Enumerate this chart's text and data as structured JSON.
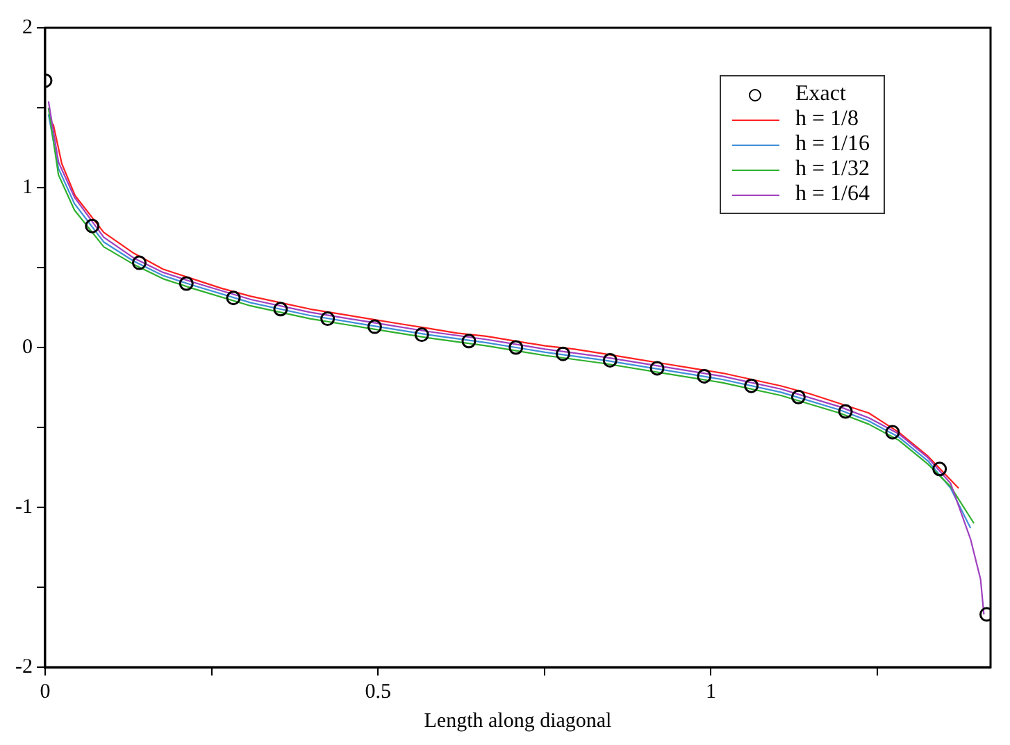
{
  "chart_data": {
    "type": "line",
    "xlabel": "Length along diagonal",
    "xlim": [
      0,
      1.42
    ],
    "ylim": [
      -2,
      2
    ],
    "xticks": [
      0,
      {
        "value": 0.25,
        "label": null
      },
      0.5,
      {
        "value": 0.75,
        "label": null
      },
      1,
      {
        "value": 1.25,
        "label": null
      }
    ],
    "yticks": [
      -2,
      {
        "value": -1.5,
        "label": null
      },
      -1,
      {
        "value": -0.5,
        "label": null
      },
      0,
      {
        "value": 0.5,
        "label": null
      },
      1,
      {
        "value": 1.5,
        "label": null
      },
      2
    ],
    "grid": false,
    "legend": "top right",
    "line_style": "solid",
    "marker": "none",
    "series": [
      {
        "name": "Exact",
        "type": "scatter",
        "marker": "circle",
        "color": "#000000",
        "x": [
          0,
          0.0707,
          0.1414,
          0.2121,
          0.2828,
          0.3536,
          0.4243,
          0.495,
          0.5657,
          0.6364,
          0.7071,
          0.7778,
          0.8485,
          0.9192,
          0.9899,
          1.0607,
          1.1314,
          1.2021,
          1.2728,
          1.3435,
          1.4142
        ],
        "values": [
          1.67,
          0.76,
          0.53,
          0.4,
          0.31,
          0.24,
          0.18,
          0.13,
          0.08,
          0.04,
          0,
          -0.04,
          -0.08,
          -0.13,
          -0.18,
          -0.24,
          -0.31,
          -0.4,
          -0.53,
          -0.76,
          -1.67
        ]
      },
      {
        "name": "h = 1/8",
        "color": "#ff2020",
        "x": [
          0.012,
          0.025,
          0.045,
          0.088,
          0.133,
          0.177,
          0.221,
          0.265,
          0.309,
          0.354,
          0.398,
          0.442,
          0.486,
          0.53,
          0.575,
          0.619,
          0.663,
          0.707,
          0.751,
          0.795,
          0.84,
          0.884,
          0.928,
          0.972,
          1.017,
          1.061,
          1.105,
          1.149,
          1.193,
          1.237,
          1.282,
          1.326,
          1.372
        ],
        "values": [
          1.4,
          1.15,
          0.95,
          0.72,
          0.59,
          0.49,
          0.43,
          0.37,
          0.32,
          0.28,
          0.24,
          0.21,
          0.18,
          0.15,
          0.12,
          0.09,
          0.07,
          0.04,
          0.01,
          -0.01,
          -0.04,
          -0.07,
          -0.1,
          -0.13,
          -0.16,
          -0.2,
          -0.24,
          -0.29,
          -0.35,
          -0.41,
          -0.53,
          -0.68,
          -0.88
        ]
      },
      {
        "name": "h = 1/16",
        "color": "#3f8fd8",
        "x": [
          0.005,
          0.02,
          0.044,
          0.088,
          0.133,
          0.177,
          0.221,
          0.309,
          0.398,
          0.486,
          0.575,
          0.663,
          0.707,
          0.751,
          0.84,
          0.928,
          1.017,
          1.105,
          1.193,
          1.237,
          1.282,
          1.326,
          1.36,
          1.39
        ],
        "values": [
          1.46,
          1.12,
          0.9,
          0.66,
          0.54,
          0.45,
          0.39,
          0.28,
          0.2,
          0.14,
          0.08,
          0.03,
          0,
          -0.03,
          -0.08,
          -0.14,
          -0.2,
          -0.28,
          -0.39,
          -0.46,
          -0.56,
          -0.71,
          -0.88,
          -1.13
        ]
      },
      {
        "name": "h = 1/32",
        "color": "#2fb02f",
        "x": [
          0.005,
          0.02,
          0.044,
          0.088,
          0.133,
          0.177,
          0.221,
          0.309,
          0.398,
          0.486,
          0.575,
          0.663,
          0.707,
          0.751,
          0.84,
          0.928,
          1.017,
          1.105,
          1.193,
          1.237,
          1.282,
          1.326,
          1.36,
          1.395
        ],
        "values": [
          1.5,
          1.08,
          0.86,
          0.63,
          0.52,
          0.43,
          0.37,
          0.26,
          0.18,
          0.12,
          0.06,
          0.01,
          -0.02,
          -0.05,
          -0.1,
          -0.16,
          -0.22,
          -0.3,
          -0.41,
          -0.48,
          -0.58,
          -0.73,
          -0.87,
          -1.1
        ]
      },
      {
        "name": "h = 1/64",
        "color": "#a040c0",
        "x": [
          0.005,
          0.02,
          0.044,
          0.088,
          0.133,
          0.177,
          0.221,
          0.309,
          0.398,
          0.486,
          0.575,
          0.663,
          0.707,
          0.751,
          0.84,
          0.928,
          1.017,
          1.105,
          1.193,
          1.237,
          1.282,
          1.326,
          1.36,
          1.39,
          1.405,
          1.41
        ],
        "values": [
          1.54,
          1.16,
          0.94,
          0.69,
          0.56,
          0.47,
          0.41,
          0.3,
          0.22,
          0.16,
          0.1,
          0.05,
          0.02,
          -0.01,
          -0.06,
          -0.12,
          -0.18,
          -0.26,
          -0.37,
          -0.44,
          -0.54,
          -0.69,
          -0.85,
          -1.2,
          -1.45,
          -1.67
        ]
      }
    ]
  }
}
